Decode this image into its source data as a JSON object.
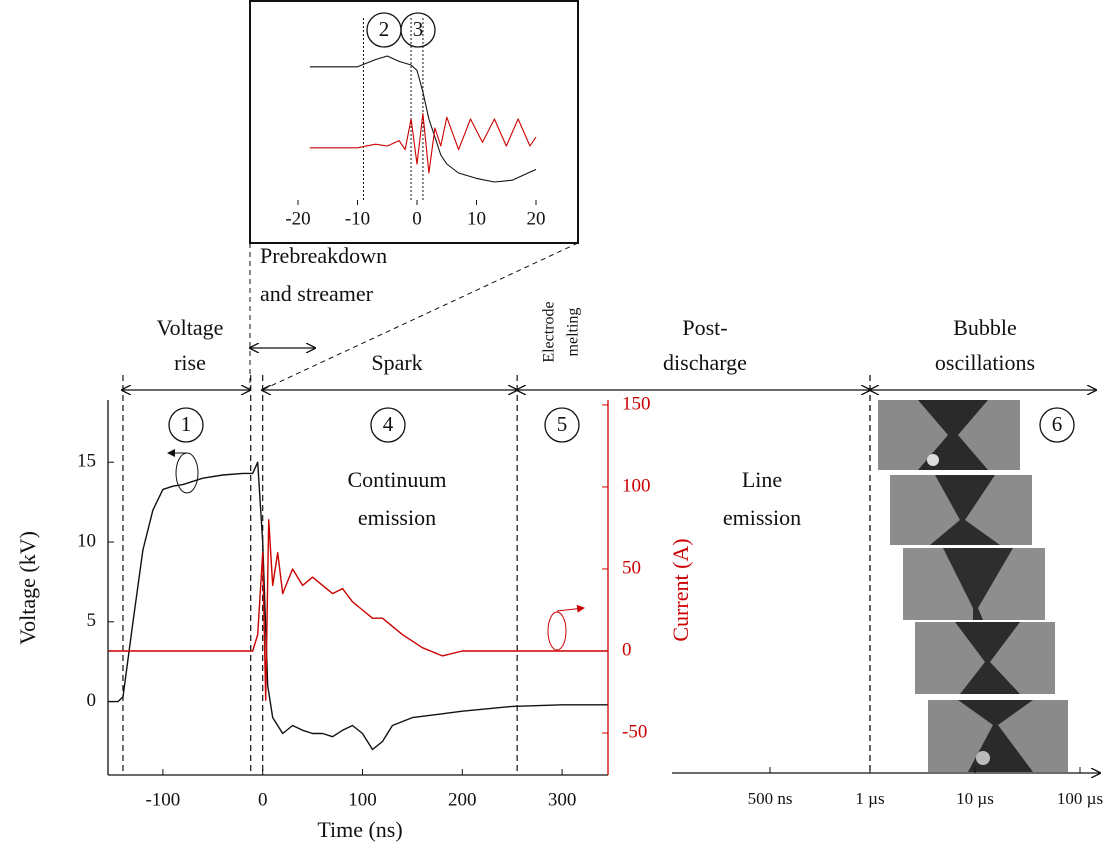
{
  "chart_data": {
    "type": "line",
    "xlabel": "Time (ns)",
    "ylabel": "Voltage (kV)",
    "y2label": "Current (A)",
    "xlim": [
      -155,
      346
    ],
    "xticks": [
      -100,
      0,
      100,
      200,
      300
    ],
    "ylim": [
      -4.6,
      18.9
    ],
    "yticks": [
      0,
      5,
      10,
      15
    ],
    "y2lim": [
      -75.6,
      153
    ],
    "y2ticks": [
      -50,
      0,
      50,
      100,
      150
    ],
    "y2color": "#cc0000",
    "boundaries": [
      -140,
      -12,
      0,
      255
    ],
    "series": [
      {
        "color": "#111111",
        "axis": "y",
        "x": [
          -155,
          -145,
          -140,
          -130,
          -120,
          -110,
          -100,
          -90,
          -80,
          -60,
          -40,
          -20,
          -10,
          -5,
          0,
          5,
          10,
          20,
          30,
          40,
          50,
          60,
          70,
          80,
          90,
          100,
          110,
          120,
          130,
          150,
          175,
          200,
          250,
          300,
          346
        ],
        "values": [
          0,
          0,
          0.3,
          5,
          9.5,
          12,
          13.3,
          13.5,
          13.6,
          14,
          14.2,
          14.3,
          14.3,
          15,
          10,
          1,
          -1,
          -2,
          -1.5,
          -1.8,
          -2,
          -2,
          -2.2,
          -1.8,
          -1.5,
          -2,
          -3,
          -2.5,
          -1.5,
          -1,
          -0.8,
          -0.6,
          -0.3,
          -0.2,
          -0.2
        ]
      },
      {
        "color": "#cc0000",
        "axis": "y2",
        "x": [
          -155,
          -100,
          -50,
          -10,
          -5,
          0,
          3,
          6,
          10,
          15,
          20,
          30,
          40,
          50,
          60,
          70,
          80,
          90,
          100,
          110,
          120,
          140,
          160,
          180,
          200,
          250,
          346
        ],
        "values": [
          0,
          0,
          0,
          0,
          10,
          60,
          -30,
          80,
          40,
          60,
          35,
          50,
          40,
          45,
          40,
          35,
          38,
          30,
          25,
          20,
          20,
          10,
          2,
          -3,
          0,
          0,
          0
        ]
      }
    ],
    "annotations": [
      {
        "lines": [
          "Voltage",
          "rise"
        ]
      },
      {
        "lines": [
          "Prebreakdown",
          "and streamer"
        ]
      },
      {
        "lines": [
          "Spark"
        ]
      },
      {
        "lines": [
          "Electrode",
          "melting"
        ]
      },
      {
        "lines": [
          "Post-",
          "discharge"
        ]
      },
      {
        "lines": [
          "Bubble",
          "oscillations"
        ]
      },
      {
        "lines": [
          "Continuum",
          "emission"
        ]
      },
      {
        "lines": [
          "Line",
          "emission"
        ]
      }
    ],
    "circled": [
      "1",
      "4",
      "5",
      "6"
    ],
    "log_time_axis": {
      "ticks": [
        "500 ns",
        "1 µs",
        "10 µs",
        "100 µs"
      ]
    },
    "inset": {
      "xlim": [
        -20,
        20
      ],
      "xticks": [
        -20,
        -10,
        0,
        10,
        20
      ],
      "ylim": [
        0,
        100
      ],
      "markers": [
        -9,
        -1,
        1
      ],
      "circled": [
        "2",
        "3"
      ],
      "series": [
        {
          "color": "#111111",
          "x": [
            -18,
            -10,
            -7,
            -5,
            -3,
            -1,
            0,
            1,
            2,
            3,
            4,
            5,
            7,
            10,
            13,
            16,
            20
          ],
          "values": [
            74,
            74,
            78,
            80,
            77,
            75,
            72,
            60,
            45,
            35,
            25,
            20,
            15,
            12,
            10,
            11,
            17
          ]
        },
        {
          "color": "#cc0000",
          "x": [
            -18,
            -10,
            -7,
            -5,
            -3,
            -2,
            -1,
            0,
            1,
            2,
            3,
            4,
            5,
            7,
            9,
            11,
            13,
            15,
            17,
            19,
            20
          ],
          "values": [
            29,
            29,
            31,
            30,
            33,
            28,
            45,
            20,
            48,
            15,
            40,
            30,
            46,
            28,
            45,
            32,
            45,
            30,
            45,
            30,
            35
          ]
        }
      ]
    }
  }
}
